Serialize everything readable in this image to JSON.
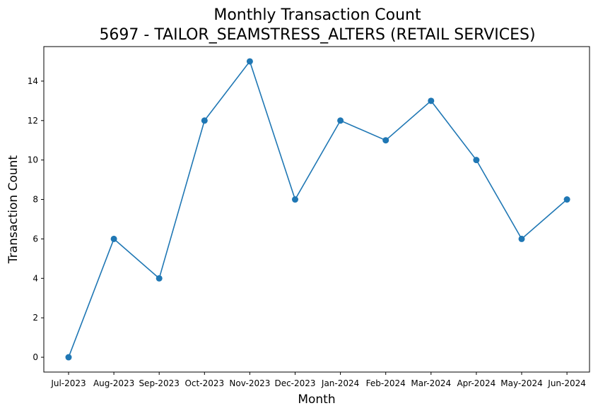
{
  "chart_data": {
    "type": "line",
    "title": "Monthly Transaction Count",
    "subtitle": "5697 - TAILOR_SEAMSTRESS_ALTERS (RETAIL SERVICES)",
    "xlabel": "Month",
    "ylabel": "Transaction Count",
    "categories": [
      "Jul-2023",
      "Aug-2023",
      "Sep-2023",
      "Oct-2023",
      "Nov-2023",
      "Dec-2023",
      "Jan-2024",
      "Feb-2024",
      "Mar-2024",
      "Apr-2024",
      "May-2024",
      "Jun-2024"
    ],
    "series": [
      {
        "values": [
          0,
          6,
          4,
          12,
          15,
          8,
          12,
          11,
          13,
          10,
          6,
          8
        ],
        "color": "#1f77b4",
        "marker": "circle"
      }
    ],
    "ylim": [
      -0.75,
      15.75
    ],
    "yticks": [
      0,
      2,
      4,
      6,
      8,
      10,
      12,
      14
    ],
    "grid": false,
    "legend": false
  }
}
